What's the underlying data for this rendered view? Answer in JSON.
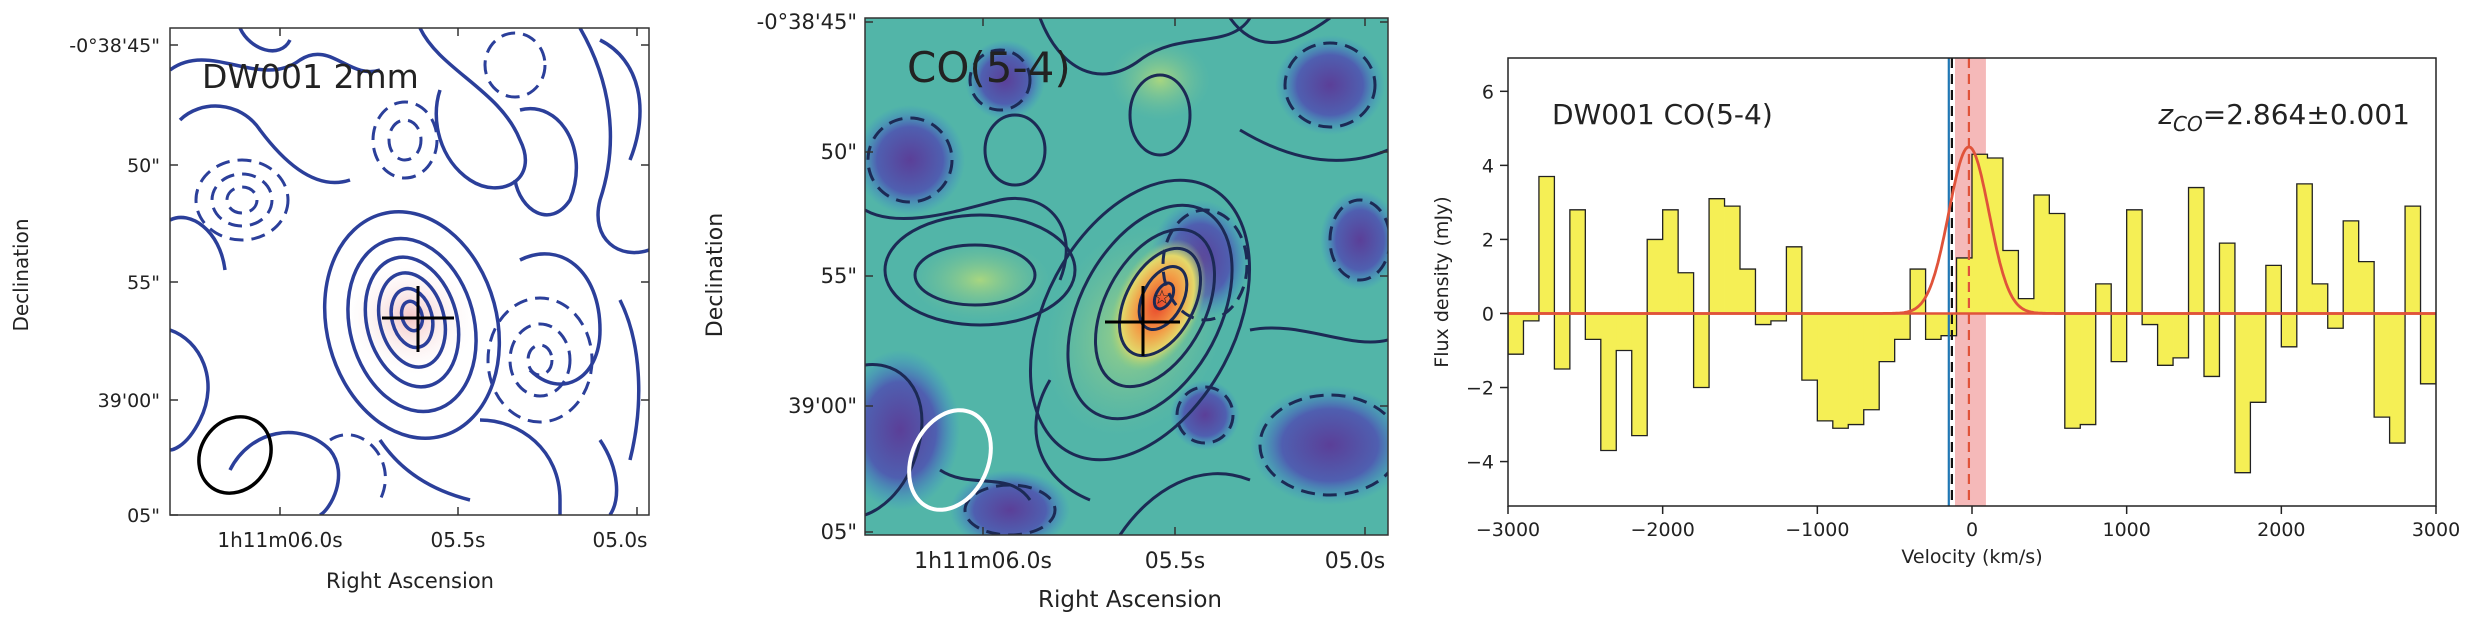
{
  "panels": {
    "left": {
      "label": "DW001  2mm",
      "xlabel": "Right Ascension",
      "ylabel": "Declination",
      "xticks": [
        "1h11m06.0s",
        "05.5s",
        "05.0s"
      ],
      "yticks": [
        "-0°38'45\"",
        "50\"",
        "55\"",
        "39'00\"",
        "05\""
      ]
    },
    "middle": {
      "label": "CO(5-4)",
      "xlabel": "Right Ascension",
      "ylabel": "Declination",
      "xticks": [
        "1h11m06.0s",
        "05.5s",
        "05.0s"
      ],
      "yticks": [
        "-0°38'45\"",
        "50\"",
        "55\"",
        "39'00\"",
        "05\""
      ]
    },
    "right": {
      "label": "DW001 CO(5-4)",
      "redshift_prefix": "z",
      "redshift_sub": "CO",
      "redshift_value": "=2.864±0.001"
    }
  },
  "colors": {
    "contour": "#2b3f9a",
    "spectrum_fill": "#f5ef55",
    "fit_line": "#e0533a",
    "band": "#f3a7a7",
    "blue_line": "#1f77b4"
  },
  "chart_data": {
    "type": "bar",
    "title": "",
    "xlabel": "Velocity (km/s)",
    "ylabel": "Flux density (mJy)",
    "xlim": [
      -3000,
      3000
    ],
    "ylim": [
      -5.2,
      6.9
    ],
    "xticks": [
      -3000,
      -2000,
      -1000,
      0,
      1000,
      2000,
      3000
    ],
    "yticks": [
      -4,
      -2,
      0,
      2,
      4,
      6
    ],
    "bin_width": 100,
    "x": [
      -3000,
      -2900,
      -2800,
      -2700,
      -2600,
      -2500,
      -2400,
      -2300,
      -2200,
      -2100,
      -2000,
      -1900,
      -1800,
      -1700,
      -1600,
      -1500,
      -1400,
      -1300,
      -1200,
      -1100,
      -1000,
      -900,
      -800,
      -700,
      -600,
      -500,
      -400,
      -300,
      -200,
      -100,
      0,
      100,
      200,
      300,
      400,
      500,
      600,
      700,
      800,
      900,
      1000,
      1100,
      1200,
      1300,
      1400,
      1500,
      1600,
      1700,
      1800,
      1900,
      2000,
      2100,
      2200,
      2300,
      2400,
      2500,
      2600,
      2700,
      2800,
      2900
    ],
    "values": [
      -1.1,
      -0.2,
      3.7,
      -1.5,
      2.8,
      -0.7,
      -3.7,
      -1.0,
      -3.3,
      2.0,
      2.8,
      1.1,
      -2.0,
      3.1,
      2.9,
      1.2,
      -0.3,
      -0.2,
      1.8,
      -1.8,
      -2.9,
      -3.1,
      -3.0,
      -2.6,
      -1.3,
      -0.7,
      1.2,
      -0.7,
      -0.6,
      1.5,
      4.3,
      4.2,
      1.7,
      0.4,
      3.2,
      2.7,
      -3.1,
      -3.0,
      0.8,
      -1.3,
      2.8,
      -0.3,
      -1.4,
      -1.2,
      3.4,
      -1.7,
      1.9,
      -4.3,
      -2.4,
      1.3,
      -0.9,
      3.5,
      0.8,
      -0.4,
      2.5,
      1.4,
      -2.8,
      -3.5,
      2.9,
      -1.9
    ],
    "gaussian": {
      "amplitude": 4.5,
      "center": -20,
      "sigma": 130
    },
    "vlines": [
      {
        "x": -150,
        "color": "#1f77b4",
        "style": "solid"
      },
      {
        "x": -130,
        "color": "#111111",
        "style": "dashed"
      },
      {
        "x": -20,
        "color": "#e0533a",
        "style": "dashed"
      }
    ],
    "band_range": [
      -110,
      90
    ],
    "grid": false
  }
}
